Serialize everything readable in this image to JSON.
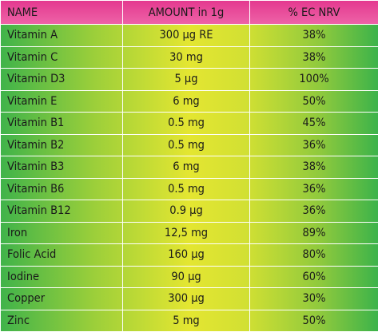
{
  "table": {
    "header": [
      "NAME",
      "AMOUNT in 1g",
      "% EC NRV"
    ],
    "rows": [
      [
        "Vitamin A",
        "300 µg RE",
        "38%"
      ],
      [
        "Vitamin C",
        "30 mg",
        "38%"
      ],
      [
        "Vitamin D3",
        "5 µg",
        "100%"
      ],
      [
        "Vitamin E",
        "6 mg",
        "50%"
      ],
      [
        "Vitamin B1",
        "0.5 mg",
        "45%"
      ],
      [
        "Vitamin B2",
        "0.5 mg",
        "36%"
      ],
      [
        "Vitamin B3",
        "6 mg",
        "38%"
      ],
      [
        "Vitamin B6",
        "0.5 mg",
        "36%"
      ],
      [
        "Vitamin B12",
        "0.9 µg",
        "36%"
      ],
      [
        "Iron",
        "12,5 mg",
        "89%"
      ],
      [
        "Folic Acid",
        "160 µg",
        "80%"
      ],
      [
        "Iodine",
        "90 µg",
        "60%"
      ],
      [
        "Copper",
        "300 µg",
        "30%"
      ],
      [
        "Zinc",
        "5 mg",
        "50%"
      ]
    ]
  }
}
